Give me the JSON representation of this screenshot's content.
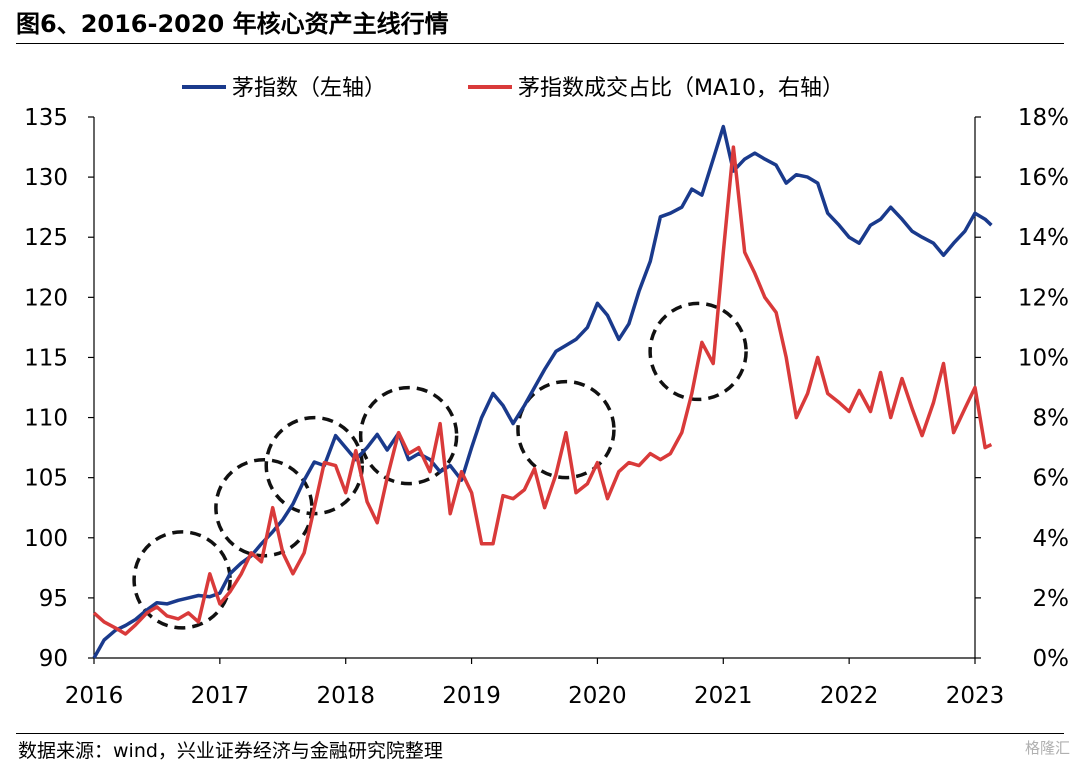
{
  "header": {
    "title": "图6、2016-2020 年核心资产主线行情"
  },
  "footer": {
    "source": "数据来源：wind，兴业证券经济与金融研究院整理",
    "watermark": "格隆汇"
  },
  "chart_data": {
    "type": "line",
    "grid": false,
    "legend_position": "top",
    "xlabel": "",
    "ylabel": "",
    "y2label": "",
    "x_ticks": [
      "2016",
      "2017",
      "2018",
      "2019",
      "2020",
      "2021",
      "2022",
      "2023"
    ],
    "y_left": {
      "range": [
        90,
        135
      ],
      "ticks": [
        "90",
        "95",
        "100",
        "105",
        "110",
        "115",
        "120",
        "125",
        "130",
        "135"
      ]
    },
    "y_right": {
      "range": [
        0,
        18
      ],
      "ticks": [
        "0%",
        "2%",
        "4%",
        "6%",
        "8%",
        "10%",
        "12%",
        "14%",
        "16%",
        "18%"
      ]
    },
    "series": [
      {
        "name": "茅指数（左轴）",
        "axis": "left",
        "color": "#1a3a8c",
        "points": [
          [
            2016.0,
            90.0
          ],
          [
            2016.08,
            91.5
          ],
          [
            2016.17,
            92.3
          ],
          [
            2016.25,
            92.7
          ],
          [
            2016.33,
            93.2
          ],
          [
            2016.42,
            94.0
          ],
          [
            2016.5,
            94.6
          ],
          [
            2016.58,
            94.5
          ],
          [
            2016.67,
            94.8
          ],
          [
            2016.75,
            95.0
          ],
          [
            2016.83,
            95.2
          ],
          [
            2016.92,
            95.1
          ],
          [
            2017.0,
            95.4
          ],
          [
            2017.08,
            97.0
          ],
          [
            2017.17,
            97.9
          ],
          [
            2017.25,
            98.5
          ],
          [
            2017.33,
            99.5
          ],
          [
            2017.42,
            100.5
          ],
          [
            2017.5,
            101.5
          ],
          [
            2017.58,
            102.8
          ],
          [
            2017.67,
            104.8
          ],
          [
            2017.75,
            106.3
          ],
          [
            2017.83,
            106.0
          ],
          [
            2017.92,
            108.5
          ],
          [
            2018.0,
            107.5
          ],
          [
            2018.08,
            106.5
          ],
          [
            2018.17,
            107.5
          ],
          [
            2018.25,
            108.6
          ],
          [
            2018.33,
            107.3
          ],
          [
            2018.42,
            108.7
          ],
          [
            2018.5,
            106.5
          ],
          [
            2018.58,
            107.0
          ],
          [
            2018.67,
            106.5
          ],
          [
            2018.75,
            105.5
          ],
          [
            2018.83,
            106.0
          ],
          [
            2018.92,
            104.8
          ],
          [
            2019.0,
            107.5
          ],
          [
            2019.08,
            110.0
          ],
          [
            2019.17,
            112.0
          ],
          [
            2019.25,
            111.0
          ],
          [
            2019.33,
            109.5
          ],
          [
            2019.42,
            111.0
          ],
          [
            2019.5,
            112.5
          ],
          [
            2019.58,
            114.0
          ],
          [
            2019.67,
            115.5
          ],
          [
            2019.75,
            116.0
          ],
          [
            2019.83,
            116.5
          ],
          [
            2019.92,
            117.5
          ],
          [
            2020.0,
            119.5
          ],
          [
            2020.08,
            118.5
          ],
          [
            2020.17,
            116.5
          ],
          [
            2020.25,
            117.8
          ],
          [
            2020.33,
            120.5
          ],
          [
            2020.42,
            123.0
          ],
          [
            2020.5,
            126.7
          ],
          [
            2020.58,
            127.0
          ],
          [
            2020.67,
            127.5
          ],
          [
            2020.75,
            129.0
          ],
          [
            2020.83,
            128.5
          ],
          [
            2020.92,
            131.5
          ],
          [
            2021.0,
            134.2
          ],
          [
            2021.08,
            130.5
          ],
          [
            2021.17,
            131.5
          ],
          [
            2021.25,
            132.0
          ],
          [
            2021.33,
            131.5
          ],
          [
            2021.42,
            131.0
          ],
          [
            2021.5,
            129.5
          ],
          [
            2021.58,
            130.2
          ],
          [
            2021.67,
            130.0
          ],
          [
            2021.75,
            129.5
          ],
          [
            2021.83,
            127.0
          ],
          [
            2021.92,
            126.0
          ],
          [
            2022.0,
            125.0
          ],
          [
            2022.08,
            124.5
          ],
          [
            2022.17,
            126.0
          ],
          [
            2022.25,
            126.5
          ],
          [
            2022.33,
            127.5
          ],
          [
            2022.42,
            126.5
          ],
          [
            2022.5,
            125.5
          ],
          [
            2022.58,
            125.0
          ],
          [
            2022.67,
            124.5
          ],
          [
            2022.75,
            123.5
          ],
          [
            2022.83,
            124.5
          ],
          [
            2022.92,
            125.5
          ],
          [
            2023.0,
            127.0
          ],
          [
            2023.08,
            126.5
          ],
          [
            2023.13,
            126.0
          ]
        ]
      },
      {
        "name": "茅指数成交占比（MA10，右轴）",
        "axis": "right",
        "color": "#d93a3a",
        "points": [
          [
            2016.0,
            1.5
          ],
          [
            2016.08,
            1.2
          ],
          [
            2016.17,
            1.0
          ],
          [
            2016.25,
            0.8
          ],
          [
            2016.33,
            1.1
          ],
          [
            2016.42,
            1.5
          ],
          [
            2016.5,
            1.7
          ],
          [
            2016.58,
            1.4
          ],
          [
            2016.67,
            1.3
          ],
          [
            2016.75,
            1.5
          ],
          [
            2016.83,
            1.2
          ],
          [
            2016.92,
            2.8
          ],
          [
            2017.0,
            1.8
          ],
          [
            2017.08,
            2.2
          ],
          [
            2017.17,
            2.8
          ],
          [
            2017.25,
            3.5
          ],
          [
            2017.33,
            3.2
          ],
          [
            2017.42,
            5.0
          ],
          [
            2017.5,
            3.5
          ],
          [
            2017.58,
            2.8
          ],
          [
            2017.67,
            3.5
          ],
          [
            2017.75,
            5.0
          ],
          [
            2017.83,
            6.5
          ],
          [
            2017.92,
            6.4
          ],
          [
            2018.0,
            5.5
          ],
          [
            2018.08,
            6.9
          ],
          [
            2018.17,
            5.2
          ],
          [
            2018.25,
            4.5
          ],
          [
            2018.33,
            6.0
          ],
          [
            2018.42,
            7.5
          ],
          [
            2018.5,
            6.8
          ],
          [
            2018.58,
            7.0
          ],
          [
            2018.67,
            6.2
          ],
          [
            2018.75,
            7.8
          ],
          [
            2018.83,
            4.8
          ],
          [
            2018.92,
            6.2
          ],
          [
            2019.0,
            5.5
          ],
          [
            2019.08,
            3.8
          ],
          [
            2019.17,
            3.8
          ],
          [
            2019.25,
            5.4
          ],
          [
            2019.33,
            5.3
          ],
          [
            2019.42,
            5.6
          ],
          [
            2019.5,
            6.3
          ],
          [
            2019.58,
            5.0
          ],
          [
            2019.67,
            6.1
          ],
          [
            2019.75,
            7.5
          ],
          [
            2019.83,
            5.5
          ],
          [
            2019.92,
            5.8
          ],
          [
            2020.0,
            6.5
          ],
          [
            2020.08,
            5.3
          ],
          [
            2020.17,
            6.2
          ],
          [
            2020.25,
            6.5
          ],
          [
            2020.33,
            6.4
          ],
          [
            2020.42,
            6.8
          ],
          [
            2020.5,
            6.6
          ],
          [
            2020.58,
            6.8
          ],
          [
            2020.67,
            7.5
          ],
          [
            2020.75,
            8.8
          ],
          [
            2020.83,
            10.5
          ],
          [
            2020.92,
            9.8
          ],
          [
            2021.0,
            13.5
          ],
          [
            2021.08,
            17.0
          ],
          [
            2021.17,
            13.5
          ],
          [
            2021.25,
            12.8
          ],
          [
            2021.33,
            12.0
          ],
          [
            2021.42,
            11.5
          ],
          [
            2021.5,
            10.0
          ],
          [
            2021.58,
            8.0
          ],
          [
            2021.67,
            8.8
          ],
          [
            2021.75,
            10.0
          ],
          [
            2021.83,
            8.8
          ],
          [
            2021.92,
            8.5
          ],
          [
            2022.0,
            8.2
          ],
          [
            2022.08,
            8.9
          ],
          [
            2022.17,
            8.2
          ],
          [
            2022.25,
            9.5
          ],
          [
            2022.33,
            8.0
          ],
          [
            2022.42,
            9.3
          ],
          [
            2022.5,
            8.3
          ],
          [
            2022.58,
            7.4
          ],
          [
            2022.67,
            8.5
          ],
          [
            2022.75,
            9.8
          ],
          [
            2022.83,
            7.5
          ],
          [
            2022.92,
            8.3
          ],
          [
            2023.0,
            9.0
          ],
          [
            2023.08,
            7.0
          ],
          [
            2023.13,
            7.1
          ]
        ]
      }
    ],
    "annotations": {
      "shape": "dashed-circle",
      "centers": [
        [
          2016.7,
          96.5
        ],
        [
          2017.35,
          102.5
        ],
        [
          2017.75,
          106.0
        ],
        [
          2018.5,
          108.5
        ],
        [
          2019.75,
          109.0
        ],
        [
          2020.8,
          115.5
        ]
      ]
    }
  }
}
